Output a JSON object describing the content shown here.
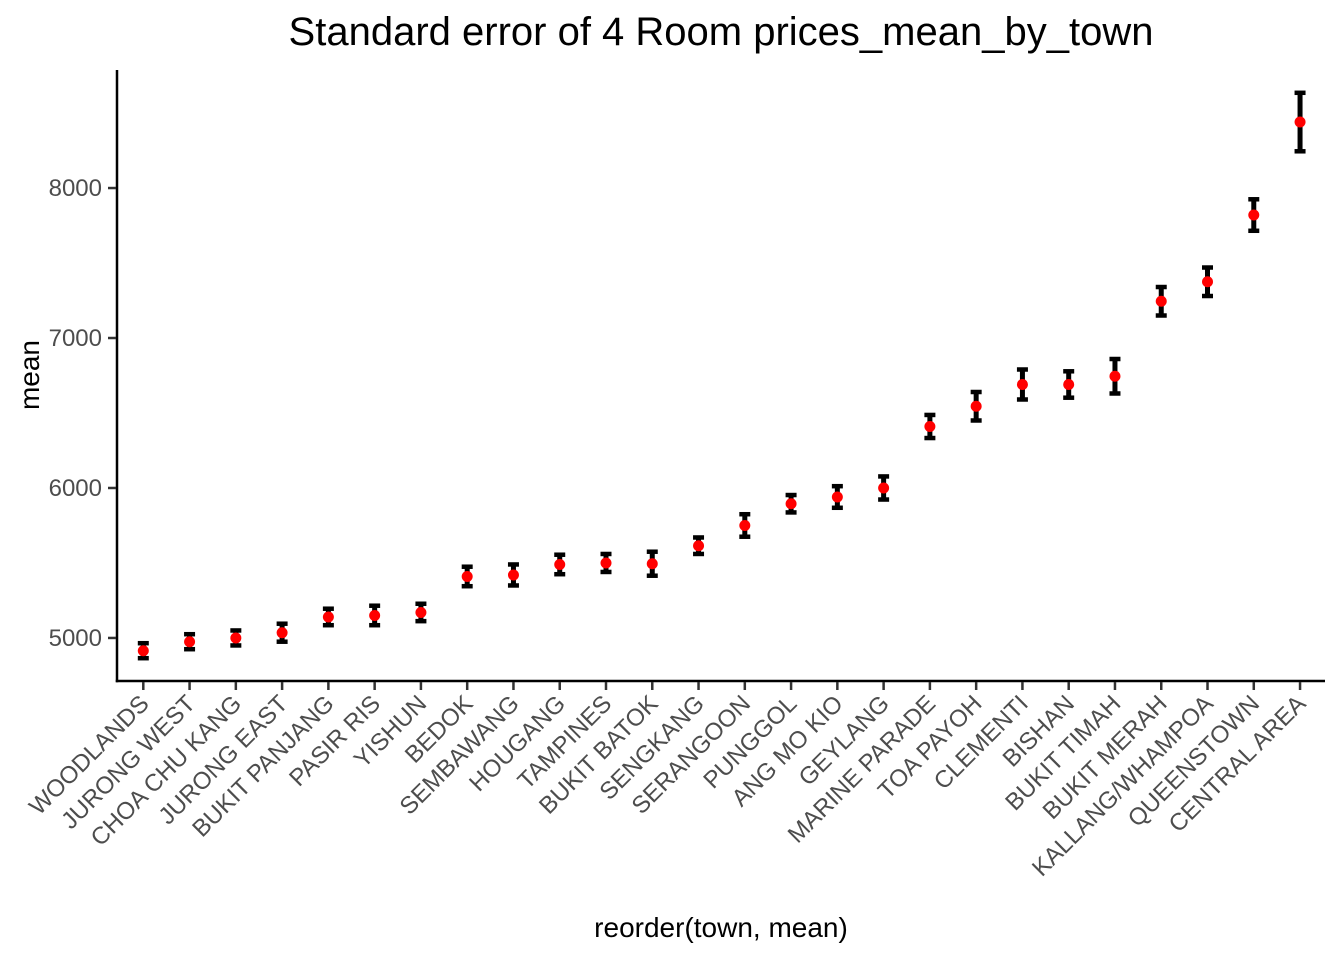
{
  "title": "Standard error of 4 Room prices_mean_by_town",
  "y_axis": {
    "label": "mean",
    "ticks": [
      "5000",
      "6000",
      "7000",
      "8000"
    ]
  },
  "x_axis": {
    "label": "reorder(town, mean)"
  },
  "colors": {
    "point": "#FF0000",
    "errorbar": "#000000",
    "axis_line": "#000000",
    "tick_mark": "#333333",
    "axis_text": "#4D4D4D",
    "title_text": "#000000",
    "background": "#FFFFFF"
  },
  "chart_data": {
    "type": "scatter",
    "subtype": "point-with-errorbar",
    "title": "Standard error of 4 Room prices_mean_by_town",
    "xlabel": "reorder(town, mean)",
    "ylabel": "mean",
    "ylim": [
      4713,
      8787
    ],
    "yticks": [
      5000,
      6000,
      7000,
      8000
    ],
    "grid": false,
    "legend_position": "none",
    "categories": [
      "WOODLANDS",
      "JURONG WEST",
      "CHOA CHU KANG",
      "JURONG EAST",
      "BUKIT PANJANG",
      "PASIR RIS",
      "YISHUN",
      "BEDOK",
      "SEMBAWANG",
      "HOUGANG",
      "TAMPINES",
      "BUKIT BATOK",
      "SENGKANG",
      "SERANGOON",
      "PUNGGOL",
      "ANG MO KIO",
      "GEYLANG",
      "MARINE PARADE",
      "TOA PAYOH",
      "CLEMENTI",
      "BISHAN",
      "BUKIT TIMAH",
      "BUKIT MERAH",
      "KALLANG/WHAMPOA",
      "QUEENSTOWN",
      "CENTRAL AREA"
    ],
    "series": [
      {
        "name": "mean",
        "values": [
          4915,
          4975,
          5000,
          5035,
          5140,
          5150,
          5170,
          5410,
          5420,
          5490,
          5500,
          5495,
          5615,
          5750,
          5895,
          5940,
          6000,
          6410,
          6545,
          6690,
          6690,
          6745,
          7245,
          7375,
          7820,
          8440
        ]
      },
      {
        "name": "standard_error",
        "values": [
          50,
          50,
          50,
          60,
          55,
          65,
          58,
          65,
          70,
          65,
          60,
          80,
          55,
          75,
          58,
          72,
          77,
          77,
          95,
          100,
          88,
          115,
          95,
          95,
          105,
          195
        ]
      }
    ],
    "mark_description": "red point at mean with black errorbar spanning mean ± standard error"
  }
}
